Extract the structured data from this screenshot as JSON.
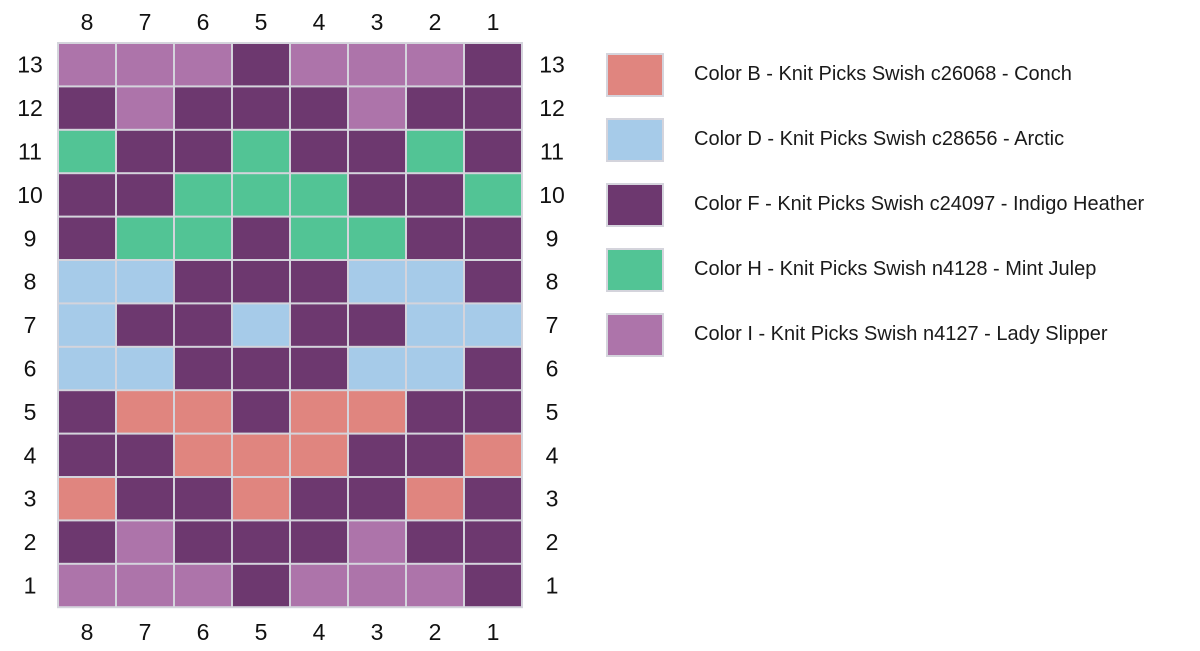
{
  "colors": {
    "B": "#e0857f",
    "D": "#a6cbe9",
    "F": "#6d386f",
    "H": "#52c495",
    "I": "#ad74aa"
  },
  "legend": [
    {
      "key": "B",
      "label": "Color B - Knit Picks Swish c26068 - Conch"
    },
    {
      "key": "D",
      "label": "Color D - Knit Picks Swish c28656 - Arctic"
    },
    {
      "key": "F",
      "label": "Color F - Knit Picks Swish c24097 - Indigo Heather"
    },
    {
      "key": "H",
      "label": "Color H - Knit Picks Swish n4128 - Mint Julep"
    },
    {
      "key": "I",
      "label": "Color I - Knit Picks Swish n4127 - Lady Slipper"
    }
  ],
  "chart_data": {
    "type": "heatmap",
    "column_labels": [
      "8",
      "7",
      "6",
      "5",
      "4",
      "3",
      "2",
      "1"
    ],
    "row_labels": [
      "13",
      "12",
      "11",
      "10",
      "9",
      "8",
      "7",
      "6",
      "5",
      "4",
      "3",
      "2",
      "1"
    ],
    "grid": [
      [
        "I",
        "I",
        "I",
        "F",
        "I",
        "I",
        "I",
        "F"
      ],
      [
        "F",
        "I",
        "F",
        "F",
        "F",
        "I",
        "F",
        "F"
      ],
      [
        "H",
        "F",
        "F",
        "H",
        "F",
        "F",
        "H",
        "F"
      ],
      [
        "F",
        "F",
        "H",
        "H",
        "H",
        "F",
        "F",
        "H"
      ],
      [
        "F",
        "H",
        "H",
        "F",
        "H",
        "H",
        "F",
        "F"
      ],
      [
        "D",
        "D",
        "F",
        "F",
        "F",
        "D",
        "D",
        "F"
      ],
      [
        "D",
        "F",
        "F",
        "D",
        "F",
        "F",
        "D",
        "D"
      ],
      [
        "D",
        "D",
        "F",
        "F",
        "F",
        "D",
        "D",
        "F"
      ],
      [
        "F",
        "B",
        "B",
        "F",
        "B",
        "B",
        "F",
        "F"
      ],
      [
        "F",
        "F",
        "B",
        "B",
        "B",
        "F",
        "F",
        "B"
      ],
      [
        "B",
        "F",
        "F",
        "B",
        "F",
        "F",
        "B",
        "F"
      ],
      [
        "F",
        "I",
        "F",
        "F",
        "F",
        "I",
        "F",
        "F"
      ],
      [
        "I",
        "I",
        "I",
        "F",
        "I",
        "I",
        "I",
        "F"
      ]
    ]
  }
}
